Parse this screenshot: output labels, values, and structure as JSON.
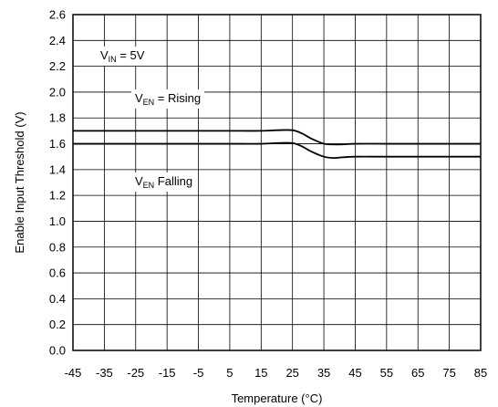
{
  "chart_data": {
    "type": "line",
    "xlabel": "Temperature (°C)",
    "ylabel": "Enable Input Threshold  (V)",
    "xlim": [
      -45,
      85
    ],
    "ylim": [
      0.0,
      2.6
    ],
    "x_ticks": [
      "-45",
      "-35",
      "-25",
      "-15",
      "-5",
      "5",
      "15",
      "25",
      "35",
      "45",
      "55",
      "65",
      "75",
      "85"
    ],
    "y_ticks": [
      "0.0",
      "0.2",
      "0.4",
      "0.6",
      "0.8",
      "1.0",
      "1.2",
      "1.4",
      "1.6",
      "1.8",
      "2.0",
      "2.2",
      "2.4",
      "2.6"
    ],
    "grid": true,
    "series": [
      {
        "x": [
          -45,
          -35,
          -25,
          -15,
          -5,
          5,
          15,
          20,
          25,
          28,
          31,
          35,
          38,
          41,
          45,
          55,
          65,
          75,
          85
        ],
        "y": [
          1.7,
          1.7,
          1.7,
          1.7,
          1.7,
          1.7,
          1.7,
          1.705,
          1.705,
          1.68,
          1.64,
          1.6,
          1.595,
          1.595,
          1.6,
          1.6,
          1.6,
          1.6,
          1.6
        ]
      },
      {
        "x": [
          -45,
          -35,
          -25,
          -15,
          -5,
          5,
          15,
          20,
          25,
          28,
          31,
          35,
          38,
          41,
          45,
          55,
          65,
          75,
          85
        ],
        "y": [
          1.6,
          1.6,
          1.6,
          1.6,
          1.6,
          1.6,
          1.6,
          1.605,
          1.605,
          1.58,
          1.54,
          1.5,
          1.49,
          1.495,
          1.5,
          1.5,
          1.5,
          1.5,
          1.5
        ]
      }
    ],
    "annotations": {
      "vin": {
        "main": "V",
        "sub": "IN",
        "rest": " = 5V"
      },
      "rising": {
        "main": "V",
        "sub": "EN",
        "rest": " = Rising"
      },
      "falling": {
        "main": "V",
        "sub": "EN",
        "rest": " Falling"
      }
    }
  }
}
